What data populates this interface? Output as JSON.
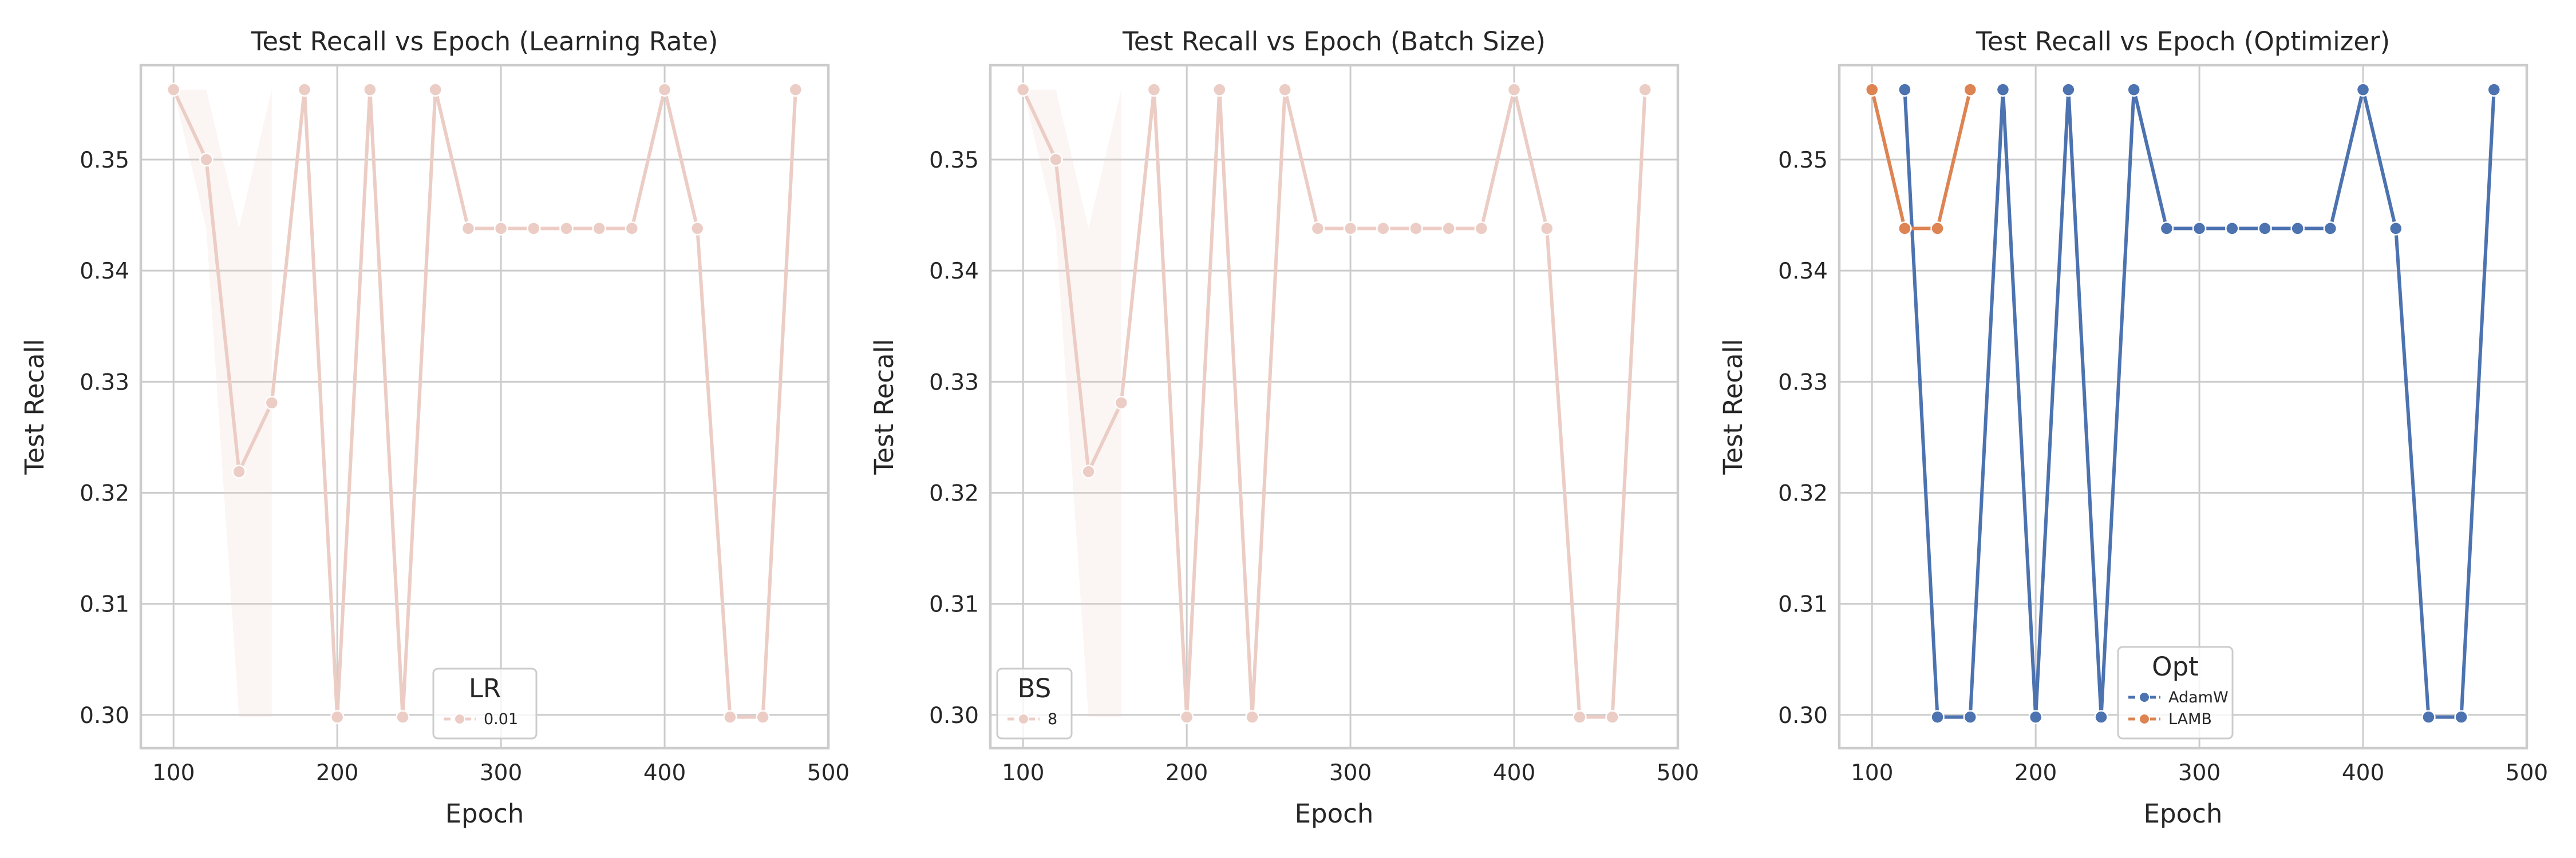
{
  "chart_data": [
    {
      "type": "line",
      "title": "Test Recall vs Epoch (Learning Rate)",
      "xlabel": "Epoch",
      "ylabel": "Test Recall",
      "xlim": [
        80,
        500
      ],
      "ylim": [
        0.297,
        0.3585
      ],
      "xticks": [
        100,
        200,
        300,
        400,
        500
      ],
      "yticks": [
        0.3,
        0.31,
        0.32,
        0.33,
        0.34,
        0.35
      ],
      "grid": true,
      "legend": {
        "title": "LR",
        "placement": "lower-center"
      },
      "series": [
        {
          "name": "0.01",
          "color": "#eccdc5",
          "marker": "circle",
          "x": [
            100,
            120,
            140,
            160,
            180,
            200,
            220,
            240,
            260,
            280,
            300,
            320,
            340,
            360,
            380,
            400,
            420,
            440,
            460,
            480
          ],
          "y": [
            0.3563,
            0.35,
            0.3219,
            0.3281,
            0.3563,
            0.2998,
            0.3563,
            0.2998,
            0.3563,
            0.3438,
            0.3438,
            0.3438,
            0.3438,
            0.3438,
            0.3438,
            0.3563,
            0.3438,
            0.2998,
            0.2998,
            0.3563
          ],
          "ci_x": [
            100,
            120,
            140,
            160
          ],
          "ci_low": [
            0.3563,
            0.3438,
            0.2998,
            0.2998
          ],
          "ci_high": [
            0.3563,
            0.3563,
            0.3438,
            0.3563
          ]
        }
      ]
    },
    {
      "type": "line",
      "title": "Test Recall vs Epoch (Batch Size)",
      "xlabel": "Epoch",
      "ylabel": "Test Recall",
      "xlim": [
        80,
        500
      ],
      "ylim": [
        0.297,
        0.3585
      ],
      "xticks": [
        100,
        200,
        300,
        400,
        500
      ],
      "yticks": [
        0.3,
        0.31,
        0.32,
        0.33,
        0.34,
        0.35
      ],
      "grid": true,
      "legend": {
        "title": "BS",
        "placement": "lower-left"
      },
      "series": [
        {
          "name": "8",
          "color": "#eccdc5",
          "marker": "circle",
          "x": [
            100,
            120,
            140,
            160,
            180,
            200,
            220,
            240,
            260,
            280,
            300,
            320,
            340,
            360,
            380,
            400,
            420,
            440,
            460,
            480
          ],
          "y": [
            0.3563,
            0.35,
            0.3219,
            0.3281,
            0.3563,
            0.2998,
            0.3563,
            0.2998,
            0.3563,
            0.3438,
            0.3438,
            0.3438,
            0.3438,
            0.3438,
            0.3438,
            0.3563,
            0.3438,
            0.2998,
            0.2998,
            0.3563
          ],
          "ci_x": [
            100,
            120,
            140,
            160
          ],
          "ci_low": [
            0.3563,
            0.3438,
            0.2998,
            0.2998
          ],
          "ci_high": [
            0.3563,
            0.3563,
            0.3438,
            0.3563
          ]
        }
      ]
    },
    {
      "type": "line",
      "title": "Test Recall vs Epoch (Optimizer)",
      "xlabel": "Epoch",
      "ylabel": "Test Recall",
      "xlim": [
        80,
        500
      ],
      "ylim": [
        0.297,
        0.3585
      ],
      "xticks": [
        100,
        200,
        300,
        400,
        500
      ],
      "yticks": [
        0.3,
        0.31,
        0.32,
        0.33,
        0.34,
        0.35
      ],
      "grid": true,
      "legend": {
        "title": "Opt",
        "placement": "lower-center"
      },
      "series": [
        {
          "name": "AdamW",
          "color": "#4c72b0",
          "marker": "circle",
          "x": [
            120,
            140,
            160,
            180,
            200,
            220,
            240,
            260,
            280,
            300,
            320,
            340,
            360,
            380,
            400,
            420,
            440,
            460,
            480
          ],
          "y": [
            0.3563,
            0.2998,
            0.2998,
            0.3563,
            0.2998,
            0.3563,
            0.2998,
            0.3563,
            0.3438,
            0.3438,
            0.3438,
            0.3438,
            0.3438,
            0.3438,
            0.3563,
            0.3438,
            0.2998,
            0.2998,
            0.3563
          ]
        },
        {
          "name": "LAMB",
          "color": "#dd8452",
          "marker": "circle",
          "x": [
            100,
            120,
            140,
            160
          ],
          "y": [
            0.3563,
            0.3438,
            0.3438,
            0.3563
          ]
        }
      ]
    }
  ]
}
